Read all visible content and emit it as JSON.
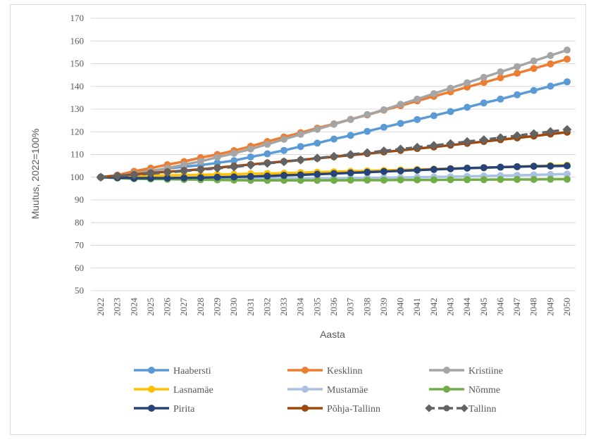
{
  "chart_data": {
    "type": "line",
    "title": "",
    "xlabel": "Aasta",
    "ylabel": "Muutus, 2022=100%",
    "ylim": [
      50,
      170
    ],
    "yticks": [
      50,
      60,
      70,
      80,
      90,
      100,
      110,
      120,
      130,
      140,
      150,
      160,
      170
    ],
    "grid": "horizontal",
    "legend_position": "bottom",
    "x": [
      "2022",
      "2023",
      "2024",
      "2025",
      "2026",
      "2027",
      "2028",
      "2029",
      "2030",
      "2031",
      "2032",
      "2033",
      "2034",
      "2035",
      "2036",
      "2037",
      "2038",
      "2039",
      "2040",
      "2041",
      "2042",
      "2043",
      "2044",
      "2045",
      "2046",
      "2047",
      "2048",
      "2049",
      "2050"
    ],
    "series": [
      {
        "name": "Haabersti",
        "color": "#5b9bd5",
        "values": [
          100,
          100.9,
          101.8,
          102.8,
          103.8,
          104.6,
          105.3,
          106.3,
          107.3,
          108.9,
          110.3,
          111.8,
          113.5,
          115,
          116.8,
          118.4,
          120.2,
          122,
          123.7,
          125.4,
          127.1,
          128.9,
          130.8,
          132.7,
          134.4,
          136.3,
          138.2,
          140.1,
          142
        ]
      },
      {
        "name": "Kesklinn",
        "color": "#ed7d31",
        "values": [
          100,
          100.9,
          102.6,
          104,
          105.5,
          106.9,
          108.6,
          110,
          111.7,
          113.6,
          115.7,
          117.7,
          119.6,
          121.6,
          123.5,
          125.5,
          127.4,
          129.5,
          131.5,
          133.6,
          135.6,
          137.6,
          139.7,
          141.7,
          143.8,
          145.8,
          147.9,
          149.9,
          152
        ]
      },
      {
        "name": "Kristiine",
        "color": "#a5a5a5",
        "values": [
          100,
          100.5,
          101.6,
          102.7,
          104,
          105.5,
          107,
          108.8,
          110.5,
          112.4,
          114.5,
          116.7,
          118.9,
          121.1,
          123.3,
          125.4,
          127.6,
          129.7,
          132.1,
          134.4,
          136.8,
          139.2,
          141.6,
          144,
          146.4,
          148.7,
          151.2,
          153.6,
          156
        ]
      },
      {
        "name": "Lasnamäe",
        "color": "#ffc000",
        "values": [
          100,
          100.2,
          100.4,
          100.6,
          100.8,
          100.9,
          101,
          101.2,
          101.3,
          101.5,
          101.6,
          101.8,
          102,
          102.2,
          102.4,
          102.6,
          102.8,
          103,
          103.2,
          103.4,
          103.6,
          103.8,
          104,
          104.2,
          104.4,
          104.7,
          104.9,
          105.1,
          105.3
        ]
      },
      {
        "name": "Mustamäe",
        "color": "#a9c1e3",
        "values": [
          100,
          99.8,
          99.6,
          99.5,
          99.4,
          99.3,
          99.3,
          99.3,
          99.3,
          99.3,
          99.3,
          99.4,
          99.4,
          99.5,
          99.5,
          99.6,
          99.7,
          99.8,
          99.9,
          100,
          100.1,
          100.2,
          100.4,
          100.5,
          100.7,
          100.8,
          101,
          101.2,
          101.4
        ]
      },
      {
        "name": "Nõmme",
        "color": "#70ad47",
        "values": [
          100,
          99.6,
          99.3,
          99.2,
          99.1,
          99,
          98.9,
          98.8,
          98.7,
          98.6,
          98.6,
          98.6,
          98.6,
          98.6,
          98.6,
          98.7,
          98.7,
          98.7,
          98.8,
          98.8,
          98.8,
          98.9,
          98.9,
          98.9,
          99,
          99,
          99,
          99.1,
          99.1
        ]
      },
      {
        "name": "Pirita",
        "color": "#264478",
        "values": [
          100,
          99.8,
          99.6,
          99.6,
          99.6,
          99.7,
          99.8,
          100,
          100.1,
          100.3,
          100.5,
          100.8,
          101,
          101.3,
          101.6,
          101.9,
          102.2,
          102.5,
          102.8,
          103.1,
          103.4,
          103.7,
          104,
          104.2,
          104.4,
          104.6,
          104.8,
          104.9,
          105
        ]
      },
      {
        "name": "Põhja-Tallinn",
        "color": "#9e480e",
        "values": [
          100,
          100.6,
          101.2,
          101.9,
          102.4,
          102.9,
          103.5,
          104.2,
          104.9,
          105.6,
          106.3,
          106.9,
          107.6,
          108.3,
          109,
          109.7,
          110.4,
          111.1,
          111.8,
          112.6,
          113.3,
          114.1,
          114.9,
          115.7,
          116.5,
          117.3,
          118.1,
          119,
          119.8
        ]
      },
      {
        "name": "Tallinn",
        "color": "#636363",
        "dashed": true,
        "values": [
          100,
          100.5,
          101,
          101.6,
          102.1,
          102.7,
          103.3,
          103.9,
          104.5,
          105.3,
          106.1,
          106.8,
          107.6,
          108.4,
          109.2,
          110,
          110.8,
          111.6,
          112.4,
          113.2,
          114,
          114.8,
          115.7,
          116.5,
          117.4,
          118.3,
          119.2,
          120.1,
          121
        ]
      }
    ]
  }
}
